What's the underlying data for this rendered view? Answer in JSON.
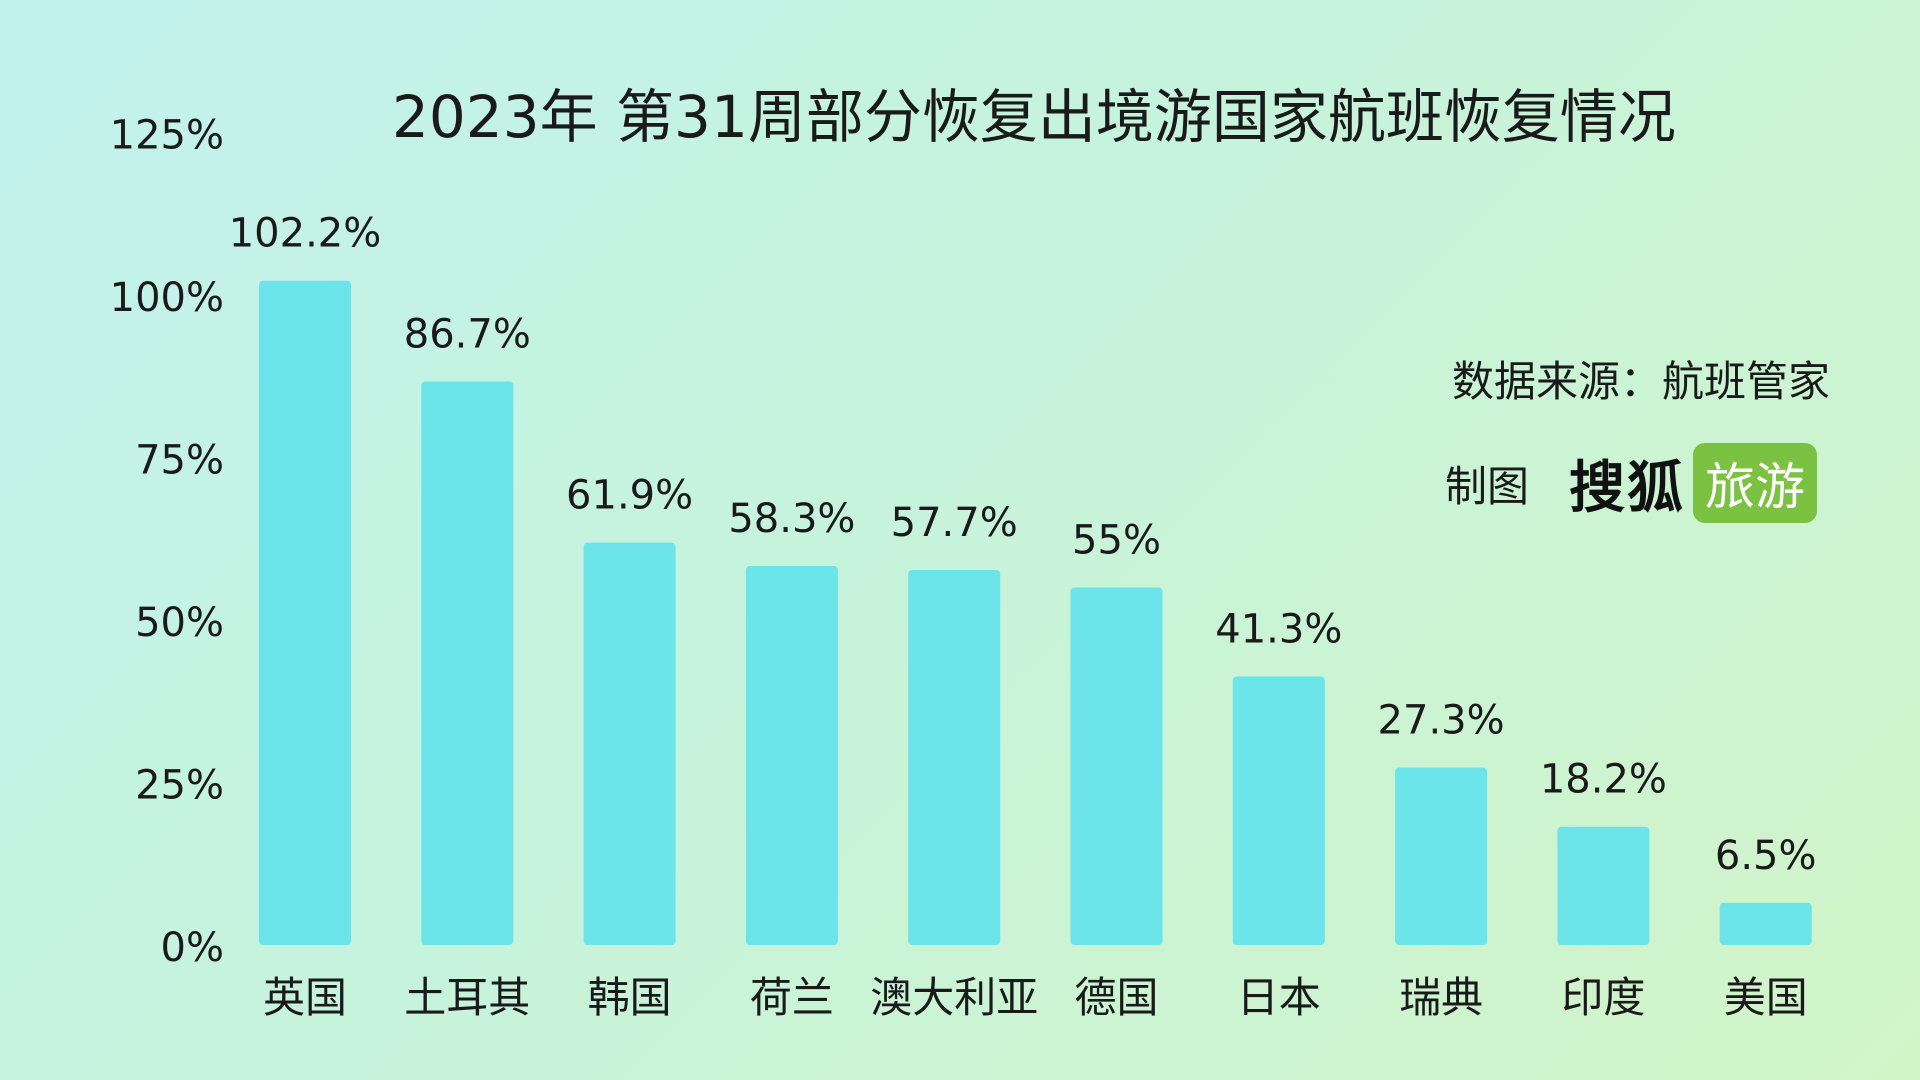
{
  "title": "2023年 第31周部分恢复出境游国家航班恢复情况",
  "source": "数据来源：航班管家",
  "maker": {
    "label": "制图",
    "logo_main": "搜狐",
    "logo_badge": "旅游"
  },
  "colors": {
    "bar": "#6be5ea",
    "logo_badge": "#7cc242",
    "text": "#1a1a1a"
  },
  "chart_data": {
    "type": "bar",
    "title": "2023年 第31周部分恢复出境游国家航班恢复情况",
    "categories": [
      "英国",
      "土耳其",
      "韩国",
      "荷兰",
      "澳大利亚",
      "德国",
      "日本",
      "瑞典",
      "印度",
      "美国"
    ],
    "values": [
      102.2,
      86.7,
      61.9,
      58.3,
      57.7,
      55,
      41.3,
      27.3,
      18.2,
      6.5
    ],
    "data_labels": [
      "102.2%",
      "86.7%",
      "61.9%",
      "58.3%",
      "57.7%",
      "55%",
      "41.3%",
      "27.3%",
      "18.2%",
      "6.5%"
    ],
    "y_ticks": [
      0,
      25,
      50,
      75,
      100,
      125
    ],
    "y_tick_labels": [
      "0%",
      "25%",
      "50%",
      "75%",
      "100%",
      "125%"
    ],
    "ylim": [
      0,
      125
    ],
    "xlabel": "",
    "ylabel": "",
    "grid": false,
    "legend": "none"
  }
}
